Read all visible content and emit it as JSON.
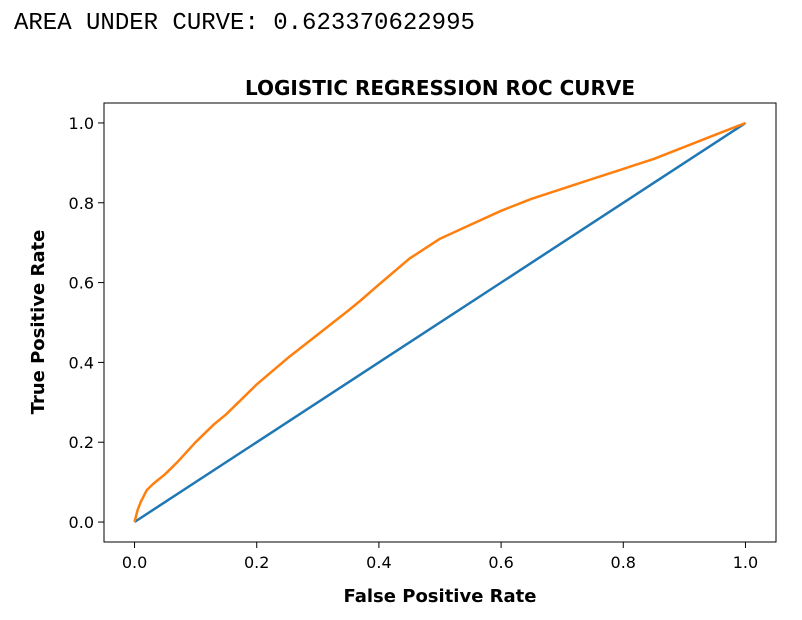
{
  "header": {
    "auc_text": "AREA UNDER CURVE: 0.623370622995"
  },
  "chart_data": {
    "type": "line",
    "title": "LOGISTIC REGRESSION ROC CURVE",
    "xlabel": "False Positive Rate",
    "ylabel": "True Positive Rate",
    "xlim": [
      -0.05,
      1.05
    ],
    "ylim": [
      -0.05,
      1.05
    ],
    "xticks": [
      0.0,
      0.2,
      0.4,
      0.6,
      0.8,
      1.0
    ],
    "xtick_labels": [
      "0.0",
      "0.2",
      "0.4",
      "0.6",
      "0.8",
      "1.0"
    ],
    "yticks": [
      0.0,
      0.2,
      0.4,
      0.6,
      0.8,
      1.0
    ],
    "ytick_labels": [
      "0.0",
      "0.2",
      "0.4",
      "0.6",
      "0.8",
      "1.0"
    ],
    "grid": false,
    "series": [
      {
        "color": "#1f77b4",
        "x": [
          0.0,
          1.0
        ],
        "y": [
          0.0,
          1.0
        ]
      },
      {
        "color": "#ff7f0e",
        "x": [
          0.0,
          0.005,
          0.01,
          0.02,
          0.03,
          0.05,
          0.07,
          0.1,
          0.13,
          0.15,
          0.2,
          0.25,
          0.3,
          0.35,
          0.37,
          0.4,
          0.45,
          0.5,
          0.55,
          0.6,
          0.65,
          0.7,
          0.75,
          0.8,
          0.85,
          0.9,
          0.95,
          1.0
        ],
        "y": [
          0.0,
          0.03,
          0.05,
          0.08,
          0.095,
          0.12,
          0.15,
          0.2,
          0.245,
          0.27,
          0.345,
          0.41,
          0.47,
          0.53,
          0.555,
          0.595,
          0.66,
          0.71,
          0.745,
          0.78,
          0.81,
          0.835,
          0.86,
          0.885,
          0.91,
          0.94,
          0.97,
          1.0
        ]
      }
    ]
  }
}
